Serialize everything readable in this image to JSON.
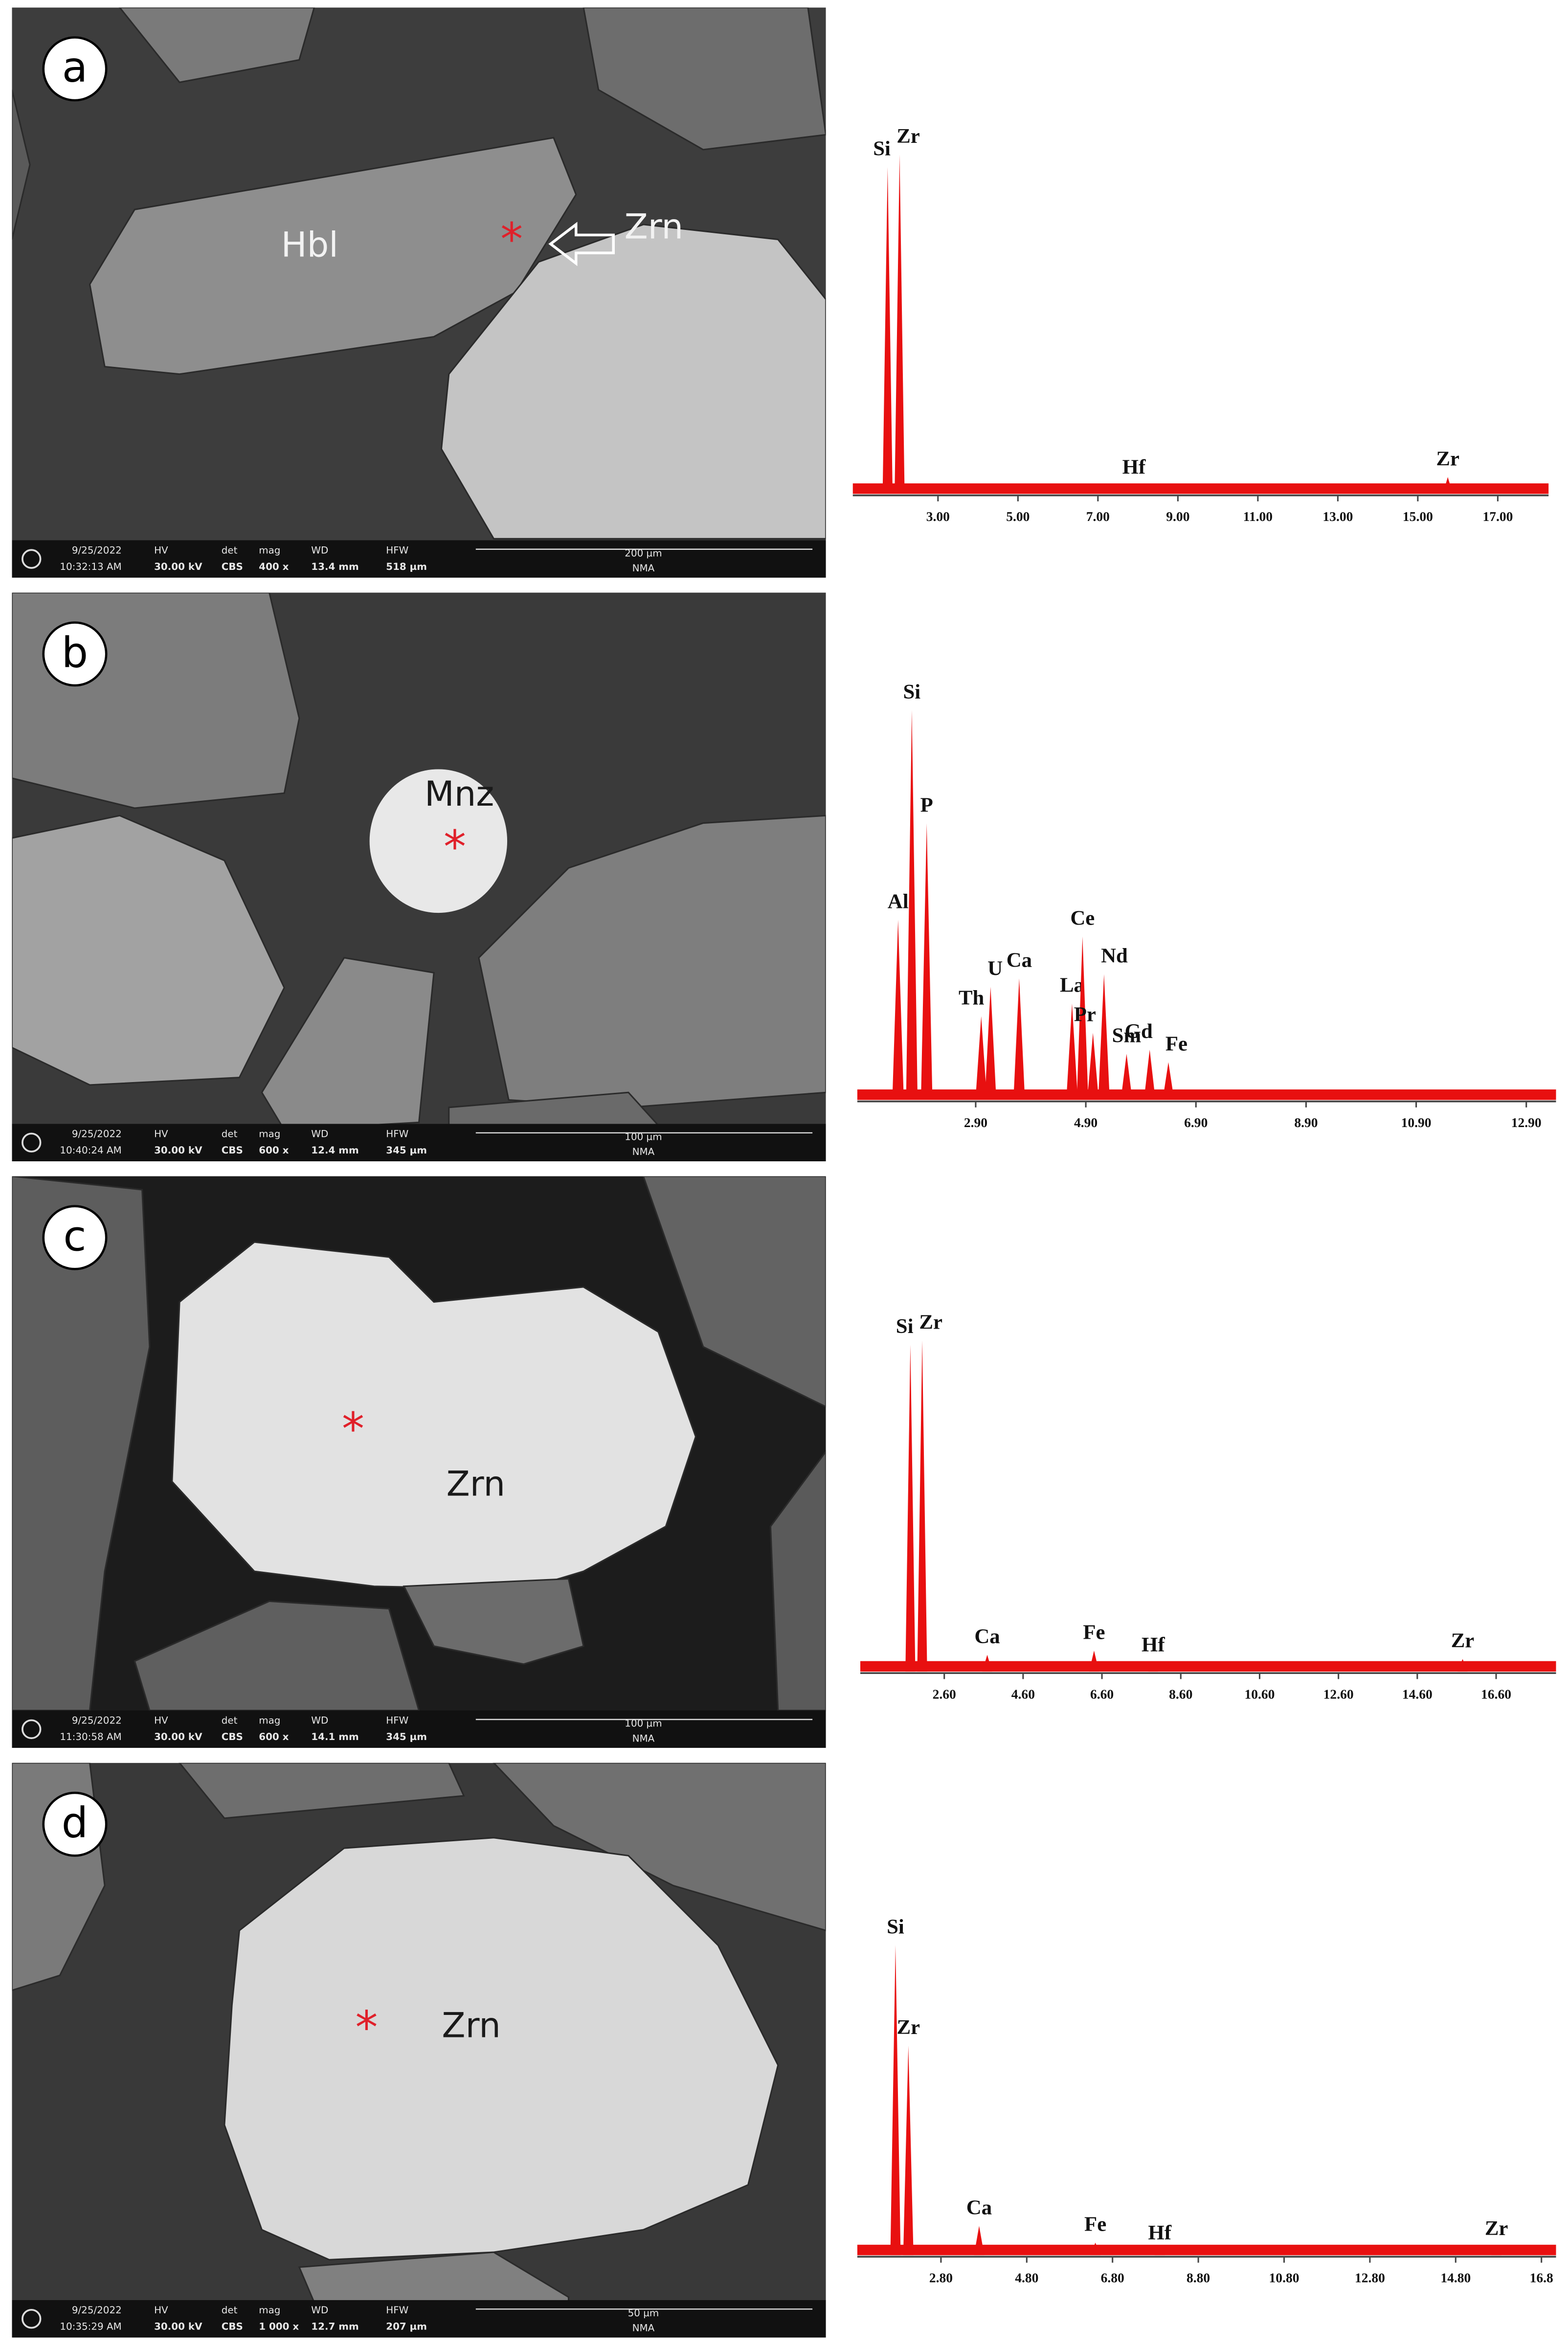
{
  "info_headers": {
    "hv": "HV",
    "det": "det",
    "mag": "mag",
    "wd": "WD",
    "hfw": "HFW"
  },
  "panels": [
    {
      "label": "a",
      "annotations": [
        "Hbl",
        "Zrn"
      ],
      "info": {
        "date": "9/25/2022",
        "time": "10:32:13 AM",
        "hv": "30.00 kV",
        "det": "CBS",
        "mag": "400 x",
        "wd": "13.4 mm",
        "hfw": "518 µm",
        "scale": "200 µm",
        "lab": "NMA"
      },
      "spectrum": {
        "xlim": [
          0.87,
          18.27
        ],
        "xticks": [
          {
            "value": 3,
            "label": "3.00"
          },
          {
            "value": 5,
            "label": "5.00"
          },
          {
            "value": 7,
            "label": "7.00"
          },
          {
            "value": 9,
            "label": "9.00"
          },
          {
            "value": 11,
            "label": "11.00"
          },
          {
            "value": 13,
            "label": "13.00"
          },
          {
            "value": 15,
            "label": "15.00"
          },
          {
            "value": 17,
            "label": "17.00"
          }
        ],
        "peaks": [
          {
            "label": "Si",
            "x": 1.74,
            "height": 78
          },
          {
            "label": "Zr",
            "x": 2.04,
            "height": 81
          },
          {
            "label": "Hf",
            "x": 7.9,
            "height": 2
          },
          {
            "label": "Zr",
            "x": 15.75,
            "height": 4
          }
        ]
      }
    },
    {
      "label": "b",
      "annotations": [
        "Mnz"
      ],
      "info": {
        "date": "9/25/2022",
        "time": "10:40:24 AM",
        "hv": "30.00 kV",
        "det": "CBS",
        "mag": "600 x",
        "wd": "12.4 mm",
        "hfw": "345 µm",
        "scale": "100 µm",
        "lab": "NMA"
      },
      "spectrum": {
        "xlim": [
          0.75,
          13.44
        ],
        "xticks": [
          {
            "value": 2.9,
            "label": "2.90"
          },
          {
            "value": 4.9,
            "label": "4.90"
          },
          {
            "value": 6.9,
            "label": "6.90"
          },
          {
            "value": 8.9,
            "label": "8.90"
          },
          {
            "value": 10.9,
            "label": "10.90"
          },
          {
            "value": 12.9,
            "label": "12.90"
          }
        ],
        "peaks": [
          {
            "label": "Al",
            "x": 1.49,
            "height": 43
          },
          {
            "label": "Si",
            "x": 1.74,
            "height": 93
          },
          {
            "label": "P",
            "x": 2.01,
            "height": 66
          },
          {
            "label": "Th",
            "x": 3.0,
            "height": 20
          },
          {
            "label": "U",
            "x": 3.17,
            "height": 27
          },
          {
            "label": "Ca",
            "x": 3.69,
            "height": 29
          },
          {
            "label": "La",
            "x": 4.65,
            "height": 23
          },
          {
            "label": "Ce",
            "x": 4.84,
            "height": 39
          },
          {
            "label": "Pr",
            "x": 5.03,
            "height": 16
          },
          {
            "label": "Nd",
            "x": 5.23,
            "height": 30
          },
          {
            "label": "Sm",
            "x": 5.64,
            "height": 11
          },
          {
            "label": "Gd",
            "x": 6.06,
            "height": 12
          },
          {
            "label": "Fe",
            "x": 6.4,
            "height": 9
          }
        ]
      }
    },
    {
      "label": "c",
      "annotations": [
        "Zrn"
      ],
      "info": {
        "date": "9/25/2022",
        "time": "11:30:58 AM",
        "hv": "30.00 kV",
        "det": "CBS",
        "mag": "600 x",
        "wd": "14.1 mm",
        "hfw": "345 µm",
        "scale": "100 µm",
        "lab": "NMA"
      },
      "spectrum": {
        "xlim": [
          0.47,
          18.12
        ],
        "xticks": [
          {
            "value": 2.6,
            "label": "2.60"
          },
          {
            "value": 4.6,
            "label": "4.60"
          },
          {
            "value": 6.6,
            "label": "6.60"
          },
          {
            "value": 8.6,
            "label": "8.60"
          },
          {
            "value": 10.6,
            "label": "10.60"
          },
          {
            "value": 12.6,
            "label": "12.60"
          },
          {
            "value": 14.6,
            "label": "14.60"
          },
          {
            "value": 16.6,
            "label": "16.60"
          }
        ],
        "peaks": [
          {
            "label": "Si",
            "x": 1.74,
            "height": 78
          },
          {
            "label": "Zr",
            "x": 2.04,
            "height": 79
          },
          {
            "label": "Ca",
            "x": 3.69,
            "height": 4
          },
          {
            "label": "Fe",
            "x": 6.4,
            "height": 5
          },
          {
            "label": "Hf",
            "x": 7.9,
            "height": 2
          },
          {
            "label": "Zr",
            "x": 15.75,
            "height": 3
          }
        ]
      }
    },
    {
      "label": "d",
      "annotations": [
        "Zrn"
      ],
      "info": {
        "date": "9/25/2022",
        "time": "10:35:29 AM",
        "hv": "30.00 kV",
        "det": "CBS",
        "mag": "1 000 x",
        "wd": "12.7 mm",
        "hfw": "207 µm",
        "scale": "50 µm",
        "lab": "NMA"
      },
      "spectrum": {
        "xlim": [
          0.85,
          17.14
        ],
        "xticks": [
          {
            "value": 2.8,
            "label": "2.80"
          },
          {
            "value": 4.8,
            "label": "4.80"
          },
          {
            "value": 6.8,
            "label": "6.80"
          },
          {
            "value": 8.8,
            "label": "8.80"
          },
          {
            "value": 10.8,
            "label": "10.80"
          },
          {
            "value": 12.8,
            "label": "12.80"
          },
          {
            "value": 14.8,
            "label": "14.80"
          },
          {
            "value": 16.8,
            "label": "16.8"
          }
        ],
        "peaks": [
          {
            "label": "Si",
            "x": 1.74,
            "height": 74
          },
          {
            "label": "Zr",
            "x": 2.04,
            "height": 50
          },
          {
            "label": "Ca",
            "x": 3.69,
            "height": 7
          },
          {
            "label": "Fe",
            "x": 6.4,
            "height": 3
          },
          {
            "label": "Hf",
            "x": 7.9,
            "height": 1
          },
          {
            "label": "Zr",
            "x": 15.75,
            "height": 2
          }
        ]
      }
    }
  ]
}
